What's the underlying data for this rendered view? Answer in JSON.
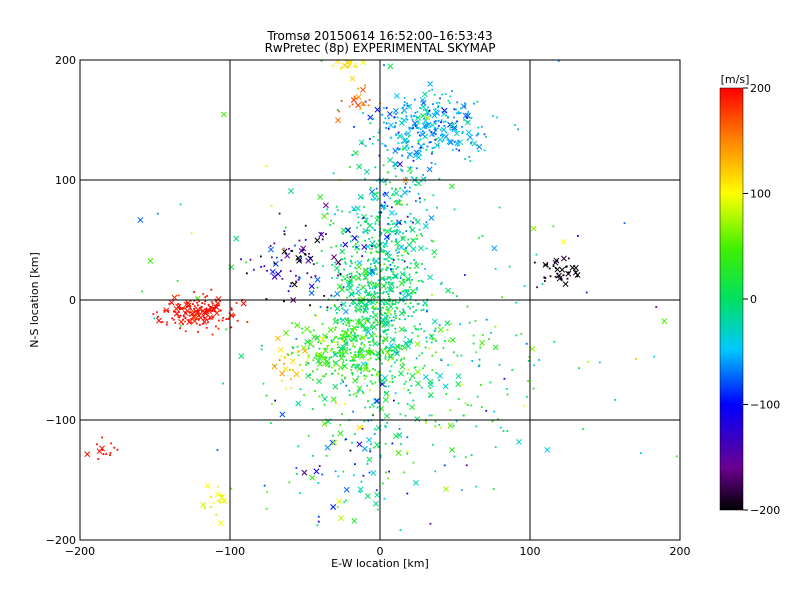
{
  "chart_data": {
    "type": "scatter",
    "title": "Tromsø 20150614 16:52:00–16:53:43",
    "subtitle": "RwPretec (8p) EXPERIMENTAL SKYMAP",
    "xlabel": "E-W location [km]",
    "ylabel": "N-S location [km]",
    "xlim": [
      -200,
      200
    ],
    "ylim": [
      -200,
      200
    ],
    "xticks": [
      -200,
      -100,
      0,
      100,
      200
    ],
    "yticks": [
      -200,
      -100,
      0,
      100,
      200
    ],
    "grid": true,
    "colorbar": {
      "label": "[m/s]",
      "range": [
        -200,
        200
      ],
      "ticks": [
        200,
        100,
        0,
        -100,
        -200
      ],
      "colormap": "rainbow (black-purple-blue-cyan-green-yellow-red)"
    },
    "markers": [
      "dot",
      "x"
    ],
    "clusters": [
      {
        "x": 0,
        "y": 5,
        "sx": 16,
        "sy": 40,
        "v": 0,
        "sv": 20,
        "n": 700
      },
      {
        "x": -25,
        "y": -40,
        "sx": 14,
        "sy": 14,
        "v": 40,
        "sv": 25,
        "n": 220
      },
      {
        "x": 35,
        "y": 145,
        "sx": 18,
        "sy": 13,
        "v": -50,
        "sv": 22,
        "n": 260
      },
      {
        "x": 10,
        "y": 90,
        "sx": 15,
        "sy": 35,
        "v": -40,
        "sv": 40,
        "n": 200
      },
      {
        "x": -120,
        "y": -10,
        "sx": 12,
        "sy": 7,
        "v": 195,
        "sv": 8,
        "n": 170
      },
      {
        "x": -55,
        "y": 30,
        "sx": 18,
        "sy": 18,
        "v": -150,
        "sv": 50,
        "n": 90
      },
      {
        "x": 120,
        "y": 25,
        "sx": 8,
        "sy": 6,
        "v": -200,
        "sv": 10,
        "n": 40
      },
      {
        "x": -20,
        "y": 195,
        "sx": 5,
        "sy": 4,
        "v": 110,
        "sv": 10,
        "n": 25
      },
      {
        "x": -15,
        "y": 165,
        "sx": 6,
        "sy": 6,
        "v": 150,
        "sv": 15,
        "n": 20
      },
      {
        "x": -185,
        "y": -125,
        "sx": 6,
        "sy": 5,
        "v": 195,
        "sv": 5,
        "n": 14
      },
      {
        "x": -110,
        "y": -165,
        "sx": 6,
        "sy": 6,
        "v": 95,
        "sv": 12,
        "n": 18
      },
      {
        "x": -20,
        "y": -140,
        "sx": 25,
        "sy": 30,
        "v": -40,
        "sv": 60,
        "n": 90
      },
      {
        "x": 20,
        "y": -60,
        "sx": 45,
        "sy": 40,
        "v": 20,
        "sv": 40,
        "n": 250
      },
      {
        "x": -60,
        "y": -55,
        "sx": 8,
        "sy": 10,
        "v": 110,
        "sv": 20,
        "n": 25
      },
      {
        "x": 0,
        "y": 0,
        "sx": 90,
        "sy": 90,
        "v": 0,
        "sv": 60,
        "n": 120
      }
    ]
  }
}
